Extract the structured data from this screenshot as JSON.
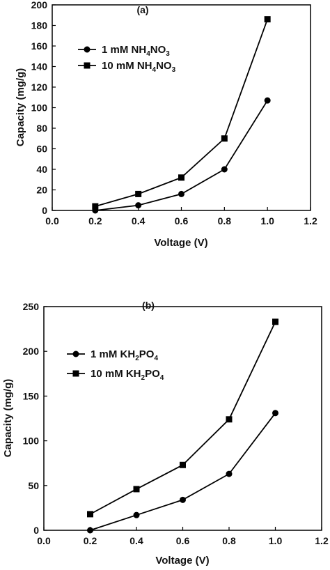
{
  "chart_data": [
    {
      "type": "line",
      "panel_label": "(a)",
      "xlabel": "Voltage (V)",
      "ylabel": "Capacity (mg/g)",
      "xlim": [
        0.0,
        1.2
      ],
      "ylim": [
        0,
        200
      ],
      "xticks": [
        "0.0",
        "0.2",
        "0.4",
        "0.6",
        "0.8",
        "1.0",
        "1.2"
      ],
      "yticks": [
        "0",
        "20",
        "40",
        "60",
        "80",
        "100",
        "120",
        "140",
        "160",
        "180",
        "200"
      ],
      "x": [
        0.2,
        0.4,
        0.6,
        0.8,
        1.0
      ],
      "legend_position": "top-left",
      "series": [
        {
          "name": "1 mM NH",
          "sub1": "4",
          "mid": "NO",
          "sub2": "3",
          "marker": "circle",
          "values": [
            0,
            5,
            16,
            40,
            107
          ]
        },
        {
          "name": "10 mM NH",
          "sub1": "4",
          "mid": "NO",
          "sub2": "3",
          "marker": "square",
          "values": [
            4,
            16,
            32,
            70,
            186
          ]
        }
      ]
    },
    {
      "type": "line",
      "panel_label": "(b)",
      "xlabel": "Voltage (V)",
      "ylabel": "Capacity (mg/g)",
      "xlim": [
        0.0,
        1.2
      ],
      "ylim": [
        0,
        250
      ],
      "xticks": [
        "0.0",
        "0.2",
        "0.4",
        "0.6",
        "0.8",
        "1.0",
        "1.2"
      ],
      "yticks": [
        "0",
        "50",
        "100",
        "150",
        "200",
        "250"
      ],
      "x": [
        0.2,
        0.4,
        0.6,
        0.8,
        1.0
      ],
      "legend_position": "top-left",
      "series": [
        {
          "name": "1 mM KH",
          "sub1": "2",
          "mid": "PO",
          "sub2": "4",
          "marker": "circle",
          "values": [
            0,
            17,
            34,
            63,
            131
          ]
        },
        {
          "name": "10 mM KH",
          "sub1": "2",
          "mid": "PO",
          "sub2": "4",
          "marker": "square",
          "values": [
            18,
            46,
            73,
            124,
            233
          ]
        }
      ]
    }
  ]
}
